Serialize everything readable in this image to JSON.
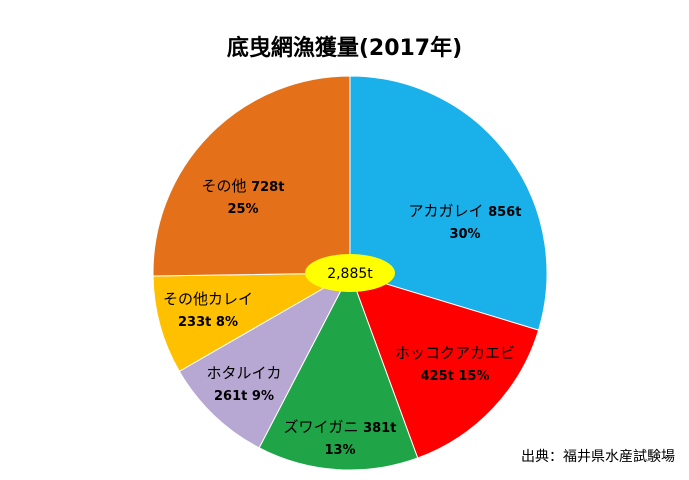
{
  "chart_data": {
    "type": "pie",
    "title": "底曳網漁獲量(2017年)",
    "total_label": "2,885t",
    "slices": [
      {
        "name": "アカガレイ",
        "amount": "856t",
        "percent": "30%",
        "value": 856,
        "color": "#1AB0EA"
      },
      {
        "name": "ホッコクアカエビ",
        "amount": "425t",
        "percent": "15%",
        "value": 425,
        "color": "#FF0000"
      },
      {
        "name": "ズワイガニ",
        "amount": "381t",
        "percent": "13%",
        "value": 381,
        "color": "#1FA448"
      },
      {
        "name": "ホタルイカ",
        "amount": "261t",
        "percent": "9%",
        "value": 261,
        "color": "#B7A7D3"
      },
      {
        "name": "その他カレイ",
        "amount": "233t",
        "percent": "8%",
        "value": 233,
        "color": "#FFC000"
      },
      {
        "name": "その他",
        "amount": "728t",
        "percent": "25%",
        "value": 728,
        "color": "#E47119"
      }
    ],
    "source": "出典：福井県水産試験場"
  }
}
